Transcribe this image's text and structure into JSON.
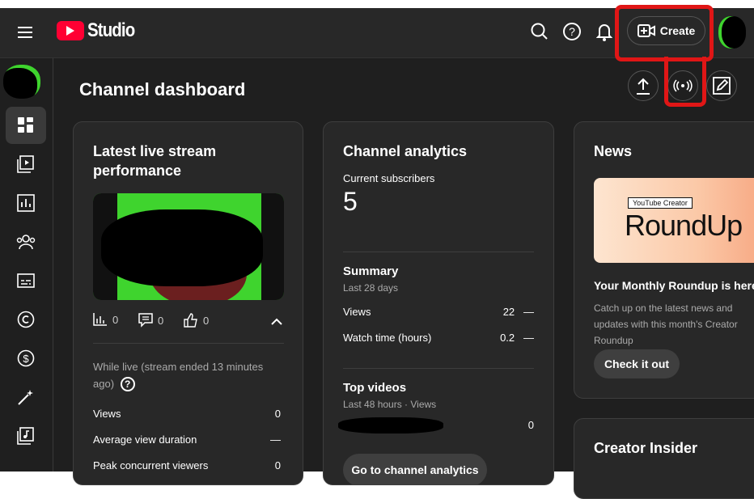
{
  "header": {
    "logo_text": "Studio",
    "create_label": "Create"
  },
  "page": {
    "title": "Channel dashboard"
  },
  "live_card": {
    "title": "Latest live stream performance",
    "stats": {
      "views": "0",
      "comments": "0",
      "likes": "0"
    },
    "while_live": "While live (stream ended 13 minutes ago)",
    "metrics": [
      {
        "label": "Views",
        "value": "0"
      },
      {
        "label": "Average view duration",
        "value": "—"
      },
      {
        "label": "Peak concurrent viewers",
        "value": "0"
      }
    ]
  },
  "analytics_card": {
    "title": "Channel analytics",
    "subs_label": "Current subscribers",
    "subs_value": "5",
    "summary_title": "Summary",
    "summary_period": "Last 28 days",
    "summary_rows": [
      {
        "label": "Views",
        "value": "22",
        "trend": "—"
      },
      {
        "label": "Watch time (hours)",
        "value": "0.2",
        "trend": "—"
      }
    ],
    "top_title": "Top videos",
    "top_period": "Last 48 hours · Views",
    "top_rows": [
      {
        "value": "0"
      }
    ],
    "button": "Go to channel analytics"
  },
  "news_card": {
    "title": "News",
    "image_badge": "YouTube Creator",
    "image_title": "RoundUp",
    "headline": "Your Monthly Roundup is here",
    "body": "Catch up on the latest news and updates with this month's Creator Roundup",
    "button": "Check it out"
  },
  "insider_card": {
    "title": "Creator Insider"
  },
  "colors": {
    "brand": "#ff0033",
    "annotation": "#e01616",
    "green": "#3fd42e"
  }
}
